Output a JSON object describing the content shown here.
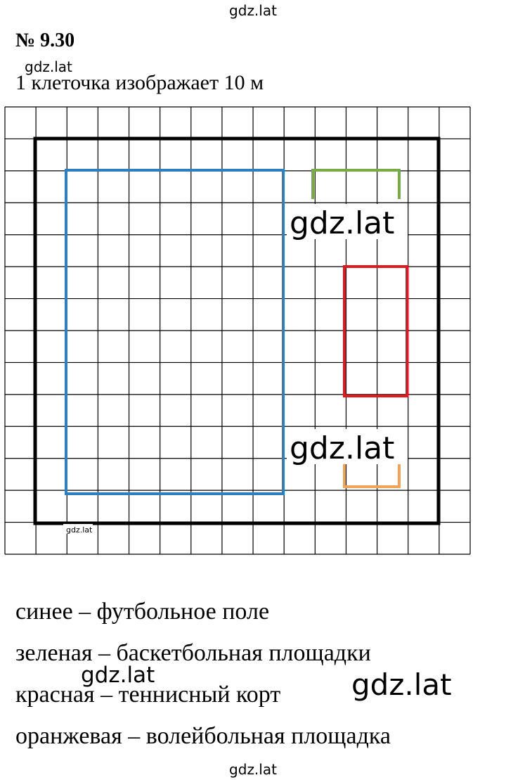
{
  "header": {
    "number": "№ 9.30",
    "scale_note": "1 клеточка изображает 10 м"
  },
  "legend": [
    "синее – футбольное поле",
    "зеленая – баскетбольная площадки",
    "красная – теннисный корт",
    "оранжевая – волейбольная площадка"
  ],
  "watermarks": [
    "gdz.lat",
    "gdz.lat",
    "gdz.lat",
    "gdz.lat",
    "gdz.lat",
    "gdz.lat",
    "gdz.lat",
    "gdz.lat"
  ]
}
